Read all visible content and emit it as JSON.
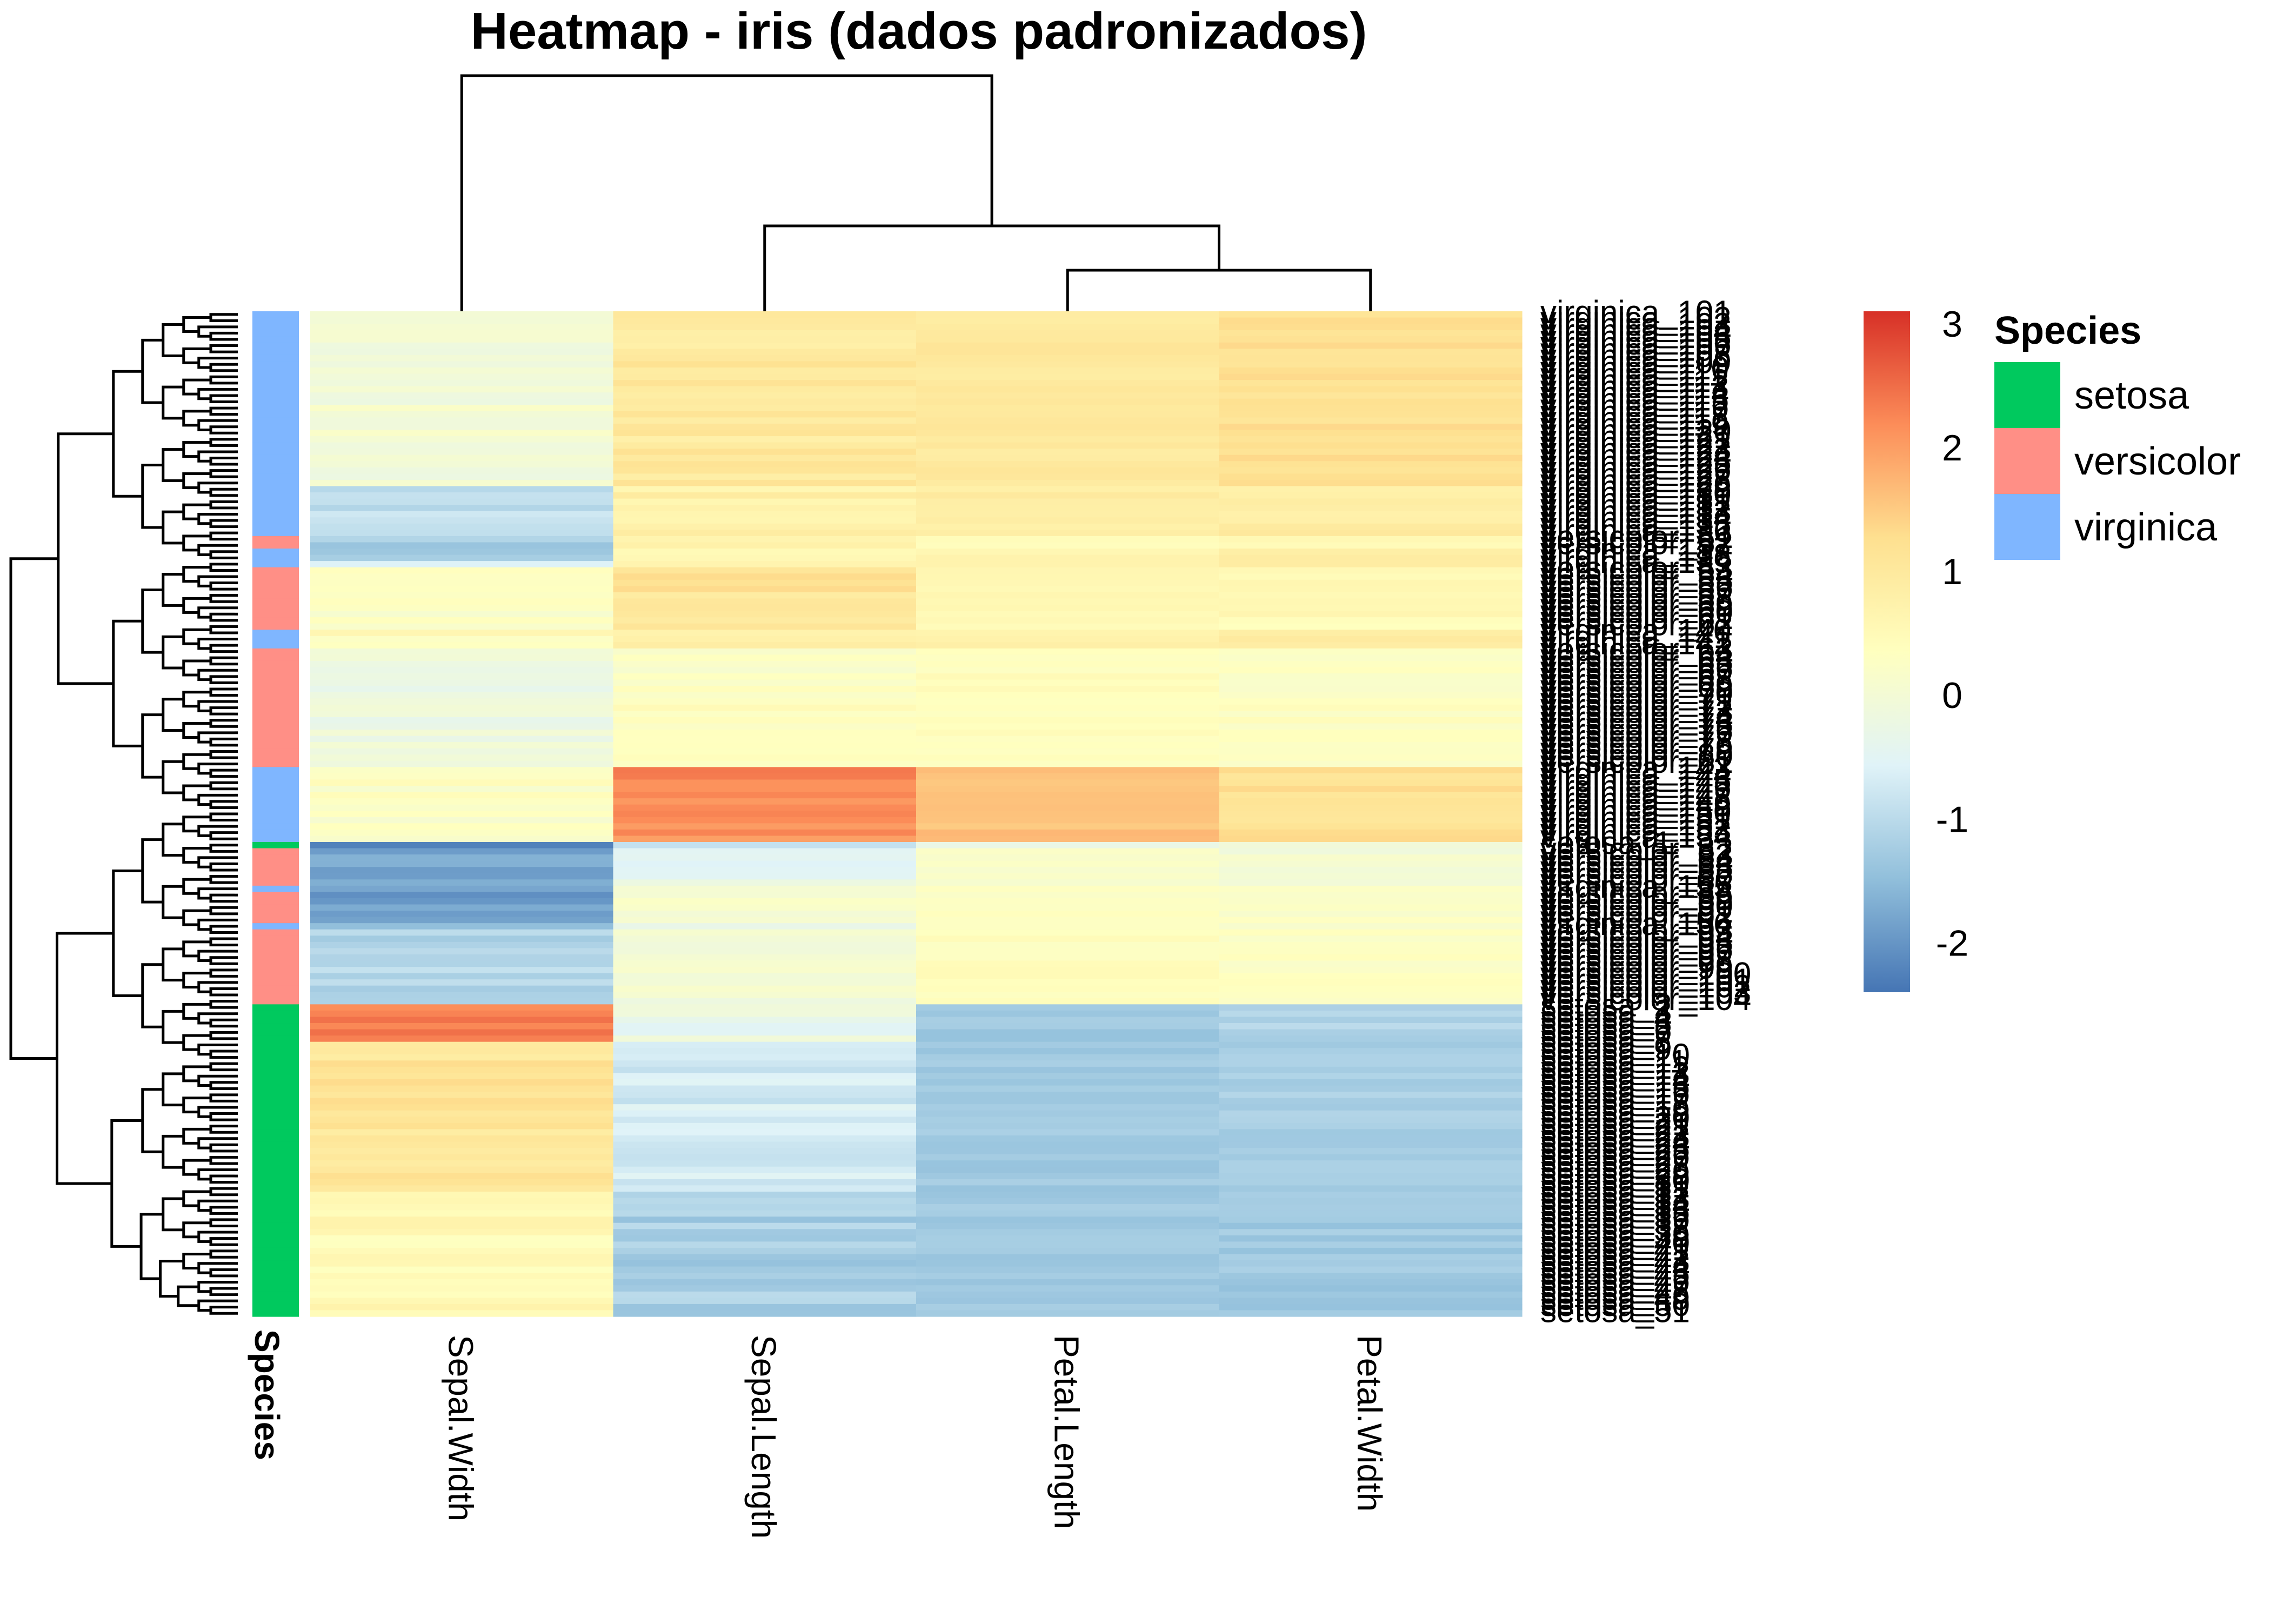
{
  "chart_data": {
    "type": "heatmap",
    "title": "Heatmap - iris (dados padronizados)",
    "columns": [
      "Sepal.Width",
      "Sepal.Length",
      "Petal.Length",
      "Petal.Width"
    ],
    "annotation_axis_label": "Species",
    "species_order": [
      "setosa",
      "versicolor",
      "virginica"
    ],
    "species_colors": {
      "setosa": "#00C95E",
      "versicolor": "#FF8F86",
      "virginica": "#7FB6FF"
    },
    "row_label_examples": [
      "virginica_101",
      "versicolor_100",
      "setosa_46"
    ],
    "color_scale": {
      "min": -2.4,
      "max": 3.1,
      "ticks": [
        3,
        2,
        1,
        0,
        -1,
        -2
      ],
      "tick_labels": [
        "3",
        "2",
        "1",
        "0",
        "-1",
        "-2"
      ],
      "palette": [
        "#4575B4",
        "#91BFDB",
        "#E0F3F8",
        "#FFFFBF",
        "#FEE090",
        "#FC8D59",
        "#D73027"
      ]
    },
    "legend": {
      "title": "Species",
      "entries": [
        {
          "label": "setosa",
          "color": "#00C95E"
        },
        {
          "label": "versicolor",
          "color": "#FF8F86"
        },
        {
          "label": "virginica",
          "color": "#7FB6FF"
        }
      ]
    },
    "column_dendrogram": "Sepal.Width | ((Sepal.Length | (Petal.Length + Petal.Width)))",
    "row_blocks": [
      {
        "species": "virginica",
        "n": 28,
        "sepal_width": 0.0,
        "sepal_length": 1.0,
        "petal_length": 1.0,
        "petal_width": 1.2
      },
      {
        "species": "virginica",
        "n": 8,
        "sepal_width": -0.9,
        "sepal_length": 0.8,
        "petal_length": 0.9,
        "petal_width": 0.9
      },
      {
        "species": "versicolor",
        "n": 2,
        "sepal_width": -1.2,
        "sepal_length": 0.6,
        "petal_length": 0.5,
        "petal_width": 0.6
      },
      {
        "species": "virginica",
        "n": 2,
        "sepal_width": -1.2,
        "sepal_length": 0.6,
        "petal_length": 0.7,
        "petal_width": 0.8
      },
      {
        "species": "virginica",
        "n": 1,
        "sepal_width": -0.6,
        "sepal_length": 0.7,
        "petal_length": 0.8,
        "petal_width": 0.8
      },
      {
        "species": "versicolor",
        "n": 10,
        "sepal_width": 0.3,
        "sepal_length": 1.1,
        "petal_length": 0.5,
        "petal_width": 0.5
      },
      {
        "species": "virginica",
        "n": 3,
        "sepal_width": 0.4,
        "sepal_length": 0.7,
        "petal_length": 0.8,
        "petal_width": 0.9
      },
      {
        "species": "versicolor",
        "n": 19,
        "sepal_width": -0.2,
        "sepal_length": 0.3,
        "petal_length": 0.4,
        "petal_width": 0.3
      },
      {
        "species": "virginica",
        "n": 12,
        "sepal_width": 0.3,
        "sepal_length": 2.2,
        "petal_length": 1.6,
        "petal_width": 1.2
      },
      {
        "species": "setosa",
        "n": 1,
        "sepal_width": -2.4,
        "sepal_length": -1.0,
        "petal_length": -0.3,
        "petal_width": -0.2
      },
      {
        "species": "versicolor",
        "n": 6,
        "sepal_width": -1.7,
        "sepal_length": -0.4,
        "petal_length": 0.2,
        "petal_width": 0.0
      },
      {
        "species": "virginica",
        "n": 1,
        "sepal_width": -1.6,
        "sepal_length": 0.2,
        "petal_length": 0.4,
        "petal_width": 0.3
      },
      {
        "species": "versicolor",
        "n": 5,
        "sepal_width": -1.9,
        "sepal_length": 0.1,
        "petal_length": 0.3,
        "petal_width": 0.2
      },
      {
        "species": "virginica",
        "n": 1,
        "sepal_width": -1.3,
        "sepal_length": -0.3,
        "petal_length": 0.3,
        "petal_width": 0.2
      },
      {
        "species": "versicolor",
        "n": 12,
        "sepal_width": -1.1,
        "sepal_length": 0.0,
        "petal_length": 0.4,
        "petal_width": 0.3
      },
      {
        "species": "setosa",
        "n": 6,
        "sepal_width": 2.4,
        "sepal_length": -0.3,
        "petal_length": -1.3,
        "petal_width": -1.1
      },
      {
        "species": "setosa",
        "n": 24,
        "sepal_width": 1.1,
        "sepal_length": -0.7,
        "petal_length": -1.3,
        "petal_width": -1.2
      },
      {
        "species": "setosa",
        "n": 20,
        "sepal_width": 0.5,
        "sepal_length": -1.2,
        "petal_length": -1.3,
        "petal_width": -1.3
      }
    ]
  }
}
